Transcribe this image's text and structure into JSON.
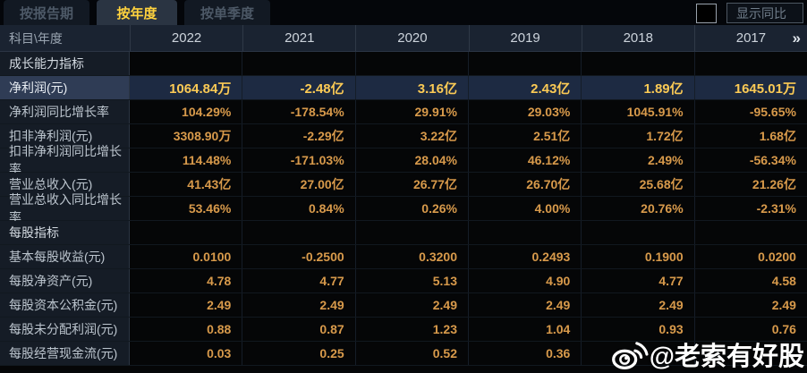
{
  "tabs": [
    {
      "label": "按报告期",
      "active": false
    },
    {
      "label": "按年度",
      "active": true
    },
    {
      "label": "按单季度",
      "active": false
    }
  ],
  "controls": {
    "show_yoy_label": "显示同比",
    "yoy_checked": false
  },
  "table": {
    "corner_label": "科目\\年度",
    "years": [
      "2022",
      "2021",
      "2020",
      "2019",
      "2018",
      "2017"
    ],
    "more_icon": "»",
    "rows": [
      {
        "type": "section",
        "label": "成长能力指标",
        "values": [
          "",
          "",
          "",
          "",
          "",
          ""
        ]
      },
      {
        "type": "data",
        "highlight": true,
        "label": "净利润(元)",
        "values": [
          "1064.84万",
          "-2.48亿",
          "3.16亿",
          "2.43亿",
          "1.89亿",
          "1645.01万"
        ]
      },
      {
        "type": "data",
        "label": "净利润同比增长率",
        "values": [
          "104.29%",
          "-178.54%",
          "29.91%",
          "29.03%",
          "1045.91%",
          "-95.65%"
        ]
      },
      {
        "type": "data",
        "label": "扣非净利润(元)",
        "values": [
          "3308.90万",
          "-2.29亿",
          "3.22亿",
          "2.51亿",
          "1.72亿",
          "1.68亿"
        ]
      },
      {
        "type": "data",
        "label": "扣非净利润同比增长率",
        "values": [
          "114.48%",
          "-171.03%",
          "28.04%",
          "46.12%",
          "2.49%",
          "-56.34%"
        ]
      },
      {
        "type": "data",
        "label": "营业总收入(元)",
        "values": [
          "41.43亿",
          "27.00亿",
          "26.77亿",
          "26.70亿",
          "25.68亿",
          "21.26亿"
        ]
      },
      {
        "type": "data",
        "label": "营业总收入同比增长率",
        "values": [
          "53.46%",
          "0.84%",
          "0.26%",
          "4.00%",
          "20.76%",
          "-2.31%"
        ]
      },
      {
        "type": "section",
        "label": "每股指标",
        "values": [
          "",
          "",
          "",
          "",
          "",
          ""
        ]
      },
      {
        "type": "data",
        "label": "基本每股收益(元)",
        "values": [
          "0.0100",
          "-0.2500",
          "0.3200",
          "0.2493",
          "0.1900",
          "0.0200"
        ]
      },
      {
        "type": "data",
        "label": "每股净资产(元)",
        "values": [
          "4.78",
          "4.77",
          "5.13",
          "4.90",
          "4.77",
          "4.58"
        ]
      },
      {
        "type": "data",
        "label": "每股资本公积金(元)",
        "values": [
          "2.49",
          "2.49",
          "2.49",
          "2.49",
          "2.49",
          "2.49"
        ]
      },
      {
        "type": "data",
        "label": "每股未分配利润(元)",
        "values": [
          "0.88",
          "0.87",
          "1.23",
          "1.04",
          "0.93",
          "0.76"
        ]
      },
      {
        "type": "data",
        "label": "每股经营现金流(元)",
        "values": [
          "0.03",
          "0.25",
          "0.52",
          "0.36",
          "",
          ""
        ]
      }
    ]
  },
  "watermark": {
    "text": "@老索有好股"
  },
  "colors": {
    "accent": "#ffd33e",
    "tab_active_bg": "#2a3442",
    "value_color": "#d89a4b",
    "value_strong": "#fbca55"
  }
}
